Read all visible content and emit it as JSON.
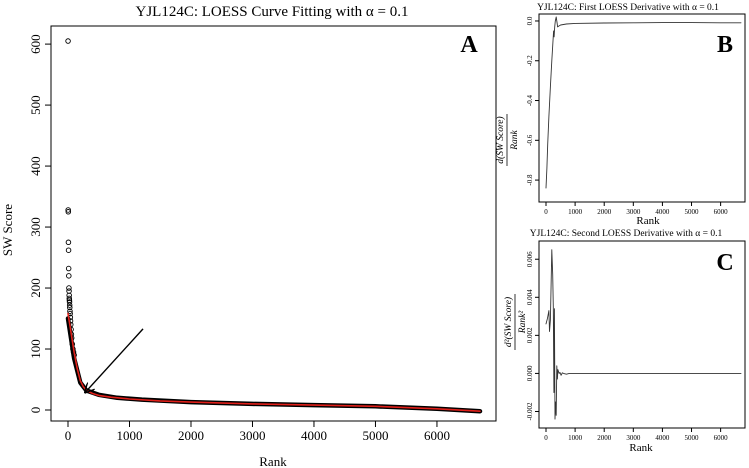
{
  "chart_data": [
    {
      "panel": "A",
      "type": "scatter",
      "title": "YJL124C: LOESS Curve Fitting with α = 0.1",
      "xlabel": "Rank",
      "ylabel": "SW Score",
      "xlim": [
        0,
        6700
      ],
      "ylim": [
        0,
        610
      ],
      "xticks": [
        0,
        1000,
        2000,
        3000,
        4000,
        5000,
        6000
      ],
      "yticks": [
        0,
        100,
        200,
        300,
        400,
        500,
        600
      ],
      "series": [
        {
          "kind": "points",
          "marker": "open-circle",
          "color": "#000000",
          "x": [
            1,
            3,
            5,
            7,
            9,
            11,
            13,
            15,
            17,
            19,
            21,
            23,
            25,
            27,
            29,
            32,
            35,
            38,
            41,
            45,
            50,
            55,
            60,
            70,
            80,
            90,
            100
          ],
          "y": [
            605,
            328,
            325,
            275,
            262,
            232,
            220,
            200,
            195,
            188,
            183,
            180,
            177,
            172,
            168,
            162,
            158,
            152,
            146,
            140,
            132,
            124,
            118,
            108,
            100,
            95,
            90
          ]
        },
        {
          "kind": "dense-points",
          "color": "#000000",
          "x": [
            0,
            100,
            200,
            300,
            500,
            800,
            1200,
            2000,
            3000,
            4000,
            5000,
            6000,
            6700
          ],
          "y": [
            150,
            85,
            45,
            32,
            25,
            20,
            17,
            13,
            10,
            8,
            6,
            2,
            -2
          ]
        },
        {
          "kind": "line",
          "name": "LOESS fit",
          "color": "#e0201a",
          "x": [
            0,
            30,
            60,
            100,
            150,
            200,
            250,
            300,
            400,
            500,
            700,
            1000,
            1500,
            2000,
            3000,
            4000,
            5000,
            6000,
            6700
          ],
          "y": [
            158,
            140,
            120,
            95,
            68,
            48,
            38,
            32,
            27,
            24,
            21,
            18,
            15,
            13,
            10,
            8,
            6,
            2,
            -2
          ]
        }
      ],
      "annotations": [
        {
          "type": "arrow",
          "from": [
            1220,
            133
          ],
          "to": [
            290,
            30
          ]
        },
        {
          "type": "text",
          "label": "A"
        }
      ]
    },
    {
      "panel": "B",
      "type": "line",
      "title": "YJL124C: First LOESS Derivative with α = 0.1",
      "xlabel": "Rank",
      "ylabel": {
        "numerator": "d(SW Score)",
        "denominator": "Rank"
      },
      "xlim": [
        0,
        6700
      ],
      "ylim": [
        -0.87,
        0.02
      ],
      "xticks": [
        0,
        1000,
        2000,
        3000,
        4000,
        5000,
        6000
      ],
      "yticks": [
        0.0,
        -0.2,
        -0.4,
        -0.6,
        -0.8
      ],
      "ytick_labels": [
        "0.0",
        "-0.2",
        "-0.4",
        "-0.6",
        "-0.8"
      ],
      "series": [
        {
          "color": "#333333",
          "x": [
            0,
            30,
            60,
            100,
            150,
            200,
            240,
            260,
            280,
            300,
            320,
            350,
            380,
            400,
            450,
            500,
            700,
            1000,
            2000,
            3000,
            4000,
            5000,
            6000,
            6700
          ],
          "y": [
            -0.84,
            -0.74,
            -0.62,
            -0.48,
            -0.33,
            -0.2,
            -0.1,
            -0.05,
            -0.08,
            -0.03,
            0.0,
            0.02,
            -0.01,
            -0.03,
            -0.025,
            -0.02,
            -0.015,
            -0.012,
            -0.01,
            -0.009,
            -0.008,
            -0.008,
            -0.009,
            -0.009
          ]
        }
      ],
      "annotations": [
        {
          "type": "text",
          "label": "B"
        }
      ]
    },
    {
      "panel": "C",
      "type": "line",
      "title": "YJL124C: Second LOESS Derivative with α = 0.1",
      "xlabel": "Rank",
      "ylabel": {
        "numerator": "d²(SW Score)",
        "denominator": "Rank²"
      },
      "xlim": [
        0,
        6700
      ],
      "ylim": [
        -0.0025,
        0.0068
      ],
      "xticks": [
        0,
        1000,
        2000,
        3000,
        4000,
        5000,
        6000
      ],
      "yticks": [
        -0.002,
        0.0,
        0.002,
        0.004,
        0.006
      ],
      "ytick_labels": [
        "-0.002",
        "0.000",
        "0.002",
        "0.004",
        "0.006"
      ],
      "series": [
        {
          "color": "#333333",
          "x": [
            0,
            50,
            100,
            120,
            150,
            200,
            230,
            250,
            270,
            290,
            310,
            330,
            350,
            370,
            390,
            410,
            430,
            450,
            480,
            520,
            560,
            600,
            700,
            800,
            1000,
            2000,
            3000,
            4000,
            5000,
            6000,
            6700
          ],
          "y": [
            0.0026,
            0.0029,
            0.0033,
            0.0022,
            0.0028,
            0.0065,
            0.0052,
            0.0035,
            -0.001,
            0.0034,
            -0.0024,
            -0.0015,
            -0.0022,
            0.0004,
            -0.0003,
            0.0002,
            0.0001,
            0.0,
            5e-05,
            -0.0001,
            3e-05,
            0.0,
            -4e-05,
            0.0,
            0.0,
            0.0,
            0.0,
            0.0,
            0.0,
            0.0,
            0.0
          ]
        }
      ],
      "annotations": [
        {
          "type": "text",
          "label": "C"
        }
      ]
    }
  ]
}
